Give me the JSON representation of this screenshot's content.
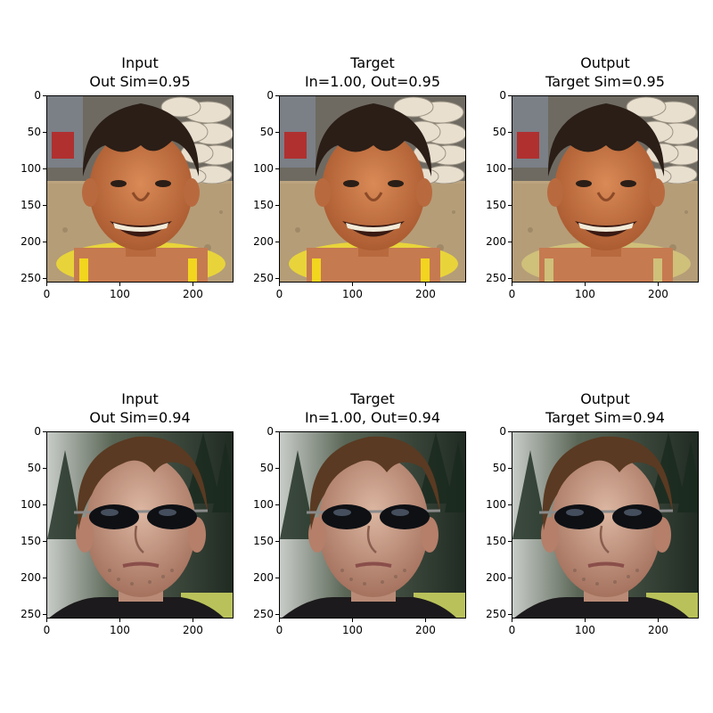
{
  "panels": [
    {
      "title_line1": "Input",
      "title_line2": "Out Sim=0.95",
      "subject": "child"
    },
    {
      "title_line1": "Target",
      "title_line2": "In=1.00, Out=0.95",
      "subject": "child"
    },
    {
      "title_line1": "Output",
      "title_line2": "Target Sim=0.95",
      "subject": "child"
    },
    {
      "title_line1": "Input",
      "title_line2": "Out Sim=0.94",
      "subject": "man"
    },
    {
      "title_line1": "Target",
      "title_line2": "In=1.00, Out=0.94",
      "subject": "man"
    },
    {
      "title_line1": "Output",
      "title_line2": "Target Sim=0.94",
      "subject": "man"
    }
  ],
  "axes": {
    "x_ticks": [
      "0",
      "100",
      "200"
    ],
    "y_ticks": [
      "0",
      "50",
      "100",
      "150",
      "200",
      "250"
    ]
  },
  "colors": {
    "child_bg": "#b9a27e",
    "child_skin": "#c9794a",
    "child_hair": "#2a1e17",
    "man_bg": "#2e3a2c",
    "man_skin": "#c99a84",
    "man_hair": "#5a3a22"
  }
}
